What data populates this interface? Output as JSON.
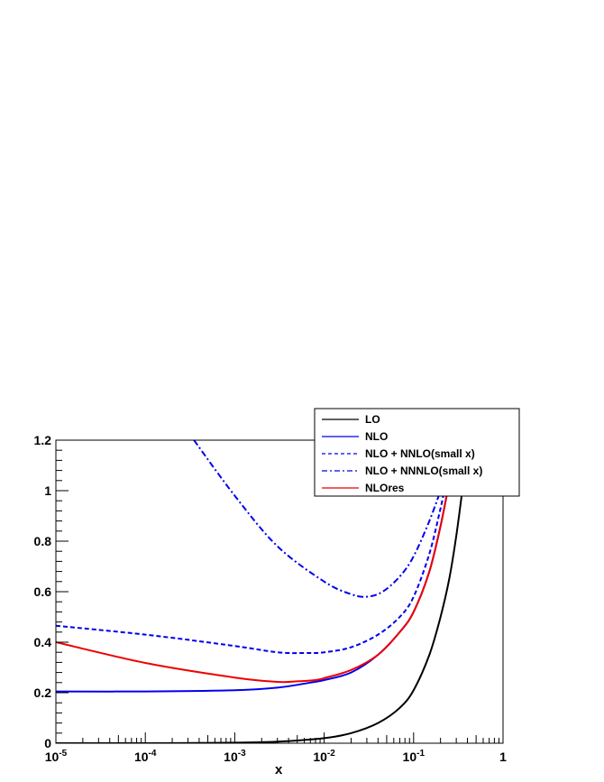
{
  "chart_data": {
    "type": "line",
    "xlabel": "x",
    "ylabel": "",
    "xscale": "log",
    "xlim": [
      1e-05,
      1
    ],
    "ylim": [
      0,
      1.2
    ],
    "grid": false,
    "legend_placement": "top-right",
    "x_ticks": [
      {
        "value": 1e-05,
        "base": "10",
        "exp": "-5"
      },
      {
        "value": 0.0001,
        "base": "10",
        "exp": "-4"
      },
      {
        "value": 0.001,
        "base": "10",
        "exp": "-3"
      },
      {
        "value": 0.01,
        "base": "10",
        "exp": "-2"
      },
      {
        "value": 0.1,
        "base": "10",
        "exp": "-1"
      },
      {
        "value": 1,
        "base": "1",
        "exp": ""
      }
    ],
    "y_ticks": [
      {
        "value": 0,
        "label": "0"
      },
      {
        "value": 0.2,
        "label": "0.2"
      },
      {
        "value": 0.4,
        "label": "0.4"
      },
      {
        "value": 0.6,
        "label": "0.6"
      },
      {
        "value": 0.8,
        "label": "0.8"
      },
      {
        "value": 1.0,
        "label": "1"
      },
      {
        "value": 1.2,
        "label": "1.2"
      }
    ],
    "series": [
      {
        "name": "LO",
        "color": "#000000",
        "dash": "solid",
        "points": [
          [
            1e-05,
            0.0
          ],
          [
            0.0001,
            0.0
          ],
          [
            0.001,
            0.002
          ],
          [
            0.003,
            0.006
          ],
          [
            0.01,
            0.02
          ],
          [
            0.02,
            0.04
          ],
          [
            0.04,
            0.08
          ],
          [
            0.07,
            0.14
          ],
          [
            0.1,
            0.21
          ],
          [
            0.15,
            0.35
          ],
          [
            0.2,
            0.5
          ],
          [
            0.25,
            0.65
          ],
          [
            0.3,
            0.82
          ],
          [
            0.35,
            1.0
          ]
        ]
      },
      {
        "name": "NLO",
        "color": "#0000ee",
        "dash": "solid",
        "points": [
          [
            1e-05,
            0.205
          ],
          [
            0.0001,
            0.205
          ],
          [
            0.001,
            0.21
          ],
          [
            0.003,
            0.22
          ],
          [
            0.007,
            0.24
          ],
          [
            0.01,
            0.25
          ],
          [
            0.02,
            0.28
          ],
          [
            0.04,
            0.35
          ],
          [
            0.07,
            0.44
          ],
          [
            0.1,
            0.52
          ],
          [
            0.15,
            0.68
          ],
          [
            0.2,
            0.86
          ],
          [
            0.24,
            1.0
          ]
        ]
      },
      {
        "name": "NLO + NNLO(small x)",
        "color": "#0000ee",
        "dash": "dashed",
        "points": [
          [
            1e-05,
            0.465
          ],
          [
            0.0001,
            0.43
          ],
          [
            0.001,
            0.385
          ],
          [
            0.003,
            0.36
          ],
          [
            0.006,
            0.357
          ],
          [
            0.01,
            0.36
          ],
          [
            0.02,
            0.38
          ],
          [
            0.04,
            0.43
          ],
          [
            0.07,
            0.5
          ],
          [
            0.1,
            0.58
          ],
          [
            0.15,
            0.75
          ],
          [
            0.2,
            0.93
          ],
          [
            0.22,
            1.0
          ]
        ]
      },
      {
        "name": "NLO + NNNLO(small x)",
        "color": "#0000ee",
        "dash": "dashdot",
        "points": [
          [
            0.00035,
            1.2
          ],
          [
            0.001,
            0.98
          ],
          [
            0.003,
            0.78
          ],
          [
            0.01,
            0.64
          ],
          [
            0.02,
            0.59
          ],
          [
            0.03,
            0.58
          ],
          [
            0.045,
            0.6
          ],
          [
            0.07,
            0.66
          ],
          [
            0.1,
            0.74
          ],
          [
            0.15,
            0.88
          ],
          [
            0.2,
            1.0
          ]
        ]
      },
      {
        "name": "NLOres",
        "color": "#ee0000",
        "dash": "solid",
        "points": [
          [
            1e-05,
            0.4
          ],
          [
            0.0001,
            0.318
          ],
          [
            0.001,
            0.26
          ],
          [
            0.003,
            0.243
          ],
          [
            0.005,
            0.245
          ],
          [
            0.008,
            0.25
          ],
          [
            0.01,
            0.258
          ],
          [
            0.02,
            0.29
          ],
          [
            0.04,
            0.35
          ],
          [
            0.07,
            0.44
          ],
          [
            0.1,
            0.52
          ],
          [
            0.15,
            0.68
          ],
          [
            0.2,
            0.86
          ],
          [
            0.24,
            1.0
          ]
        ]
      }
    ]
  }
}
